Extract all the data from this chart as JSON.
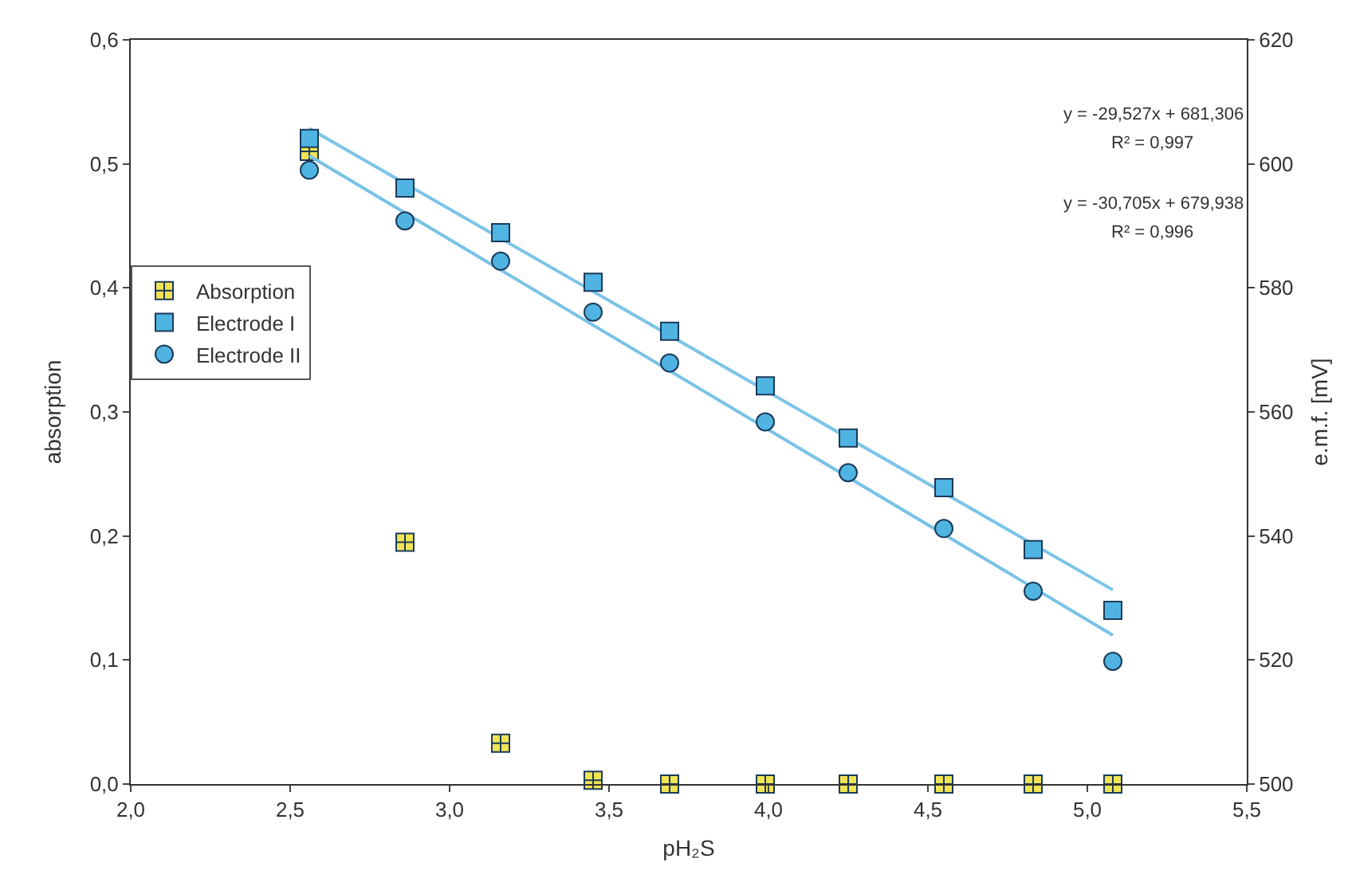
{
  "chart_data": {
    "type": "scatter",
    "xlabel": "pH₂S",
    "ylabel": "absorption",
    "y2label": "e.m.f. [mV]",
    "x": [
      2.56,
      2.86,
      3.16,
      3.45,
      3.69,
      3.99,
      4.25,
      4.55,
      4.83,
      5.08
    ],
    "series": [
      {
        "type": "line",
        "color": "#7cc4e8",
        "marker": "none",
        "line_style": "solid",
        "axis": "y2",
        "values": [
          605.7,
          null,
          null,
          null,
          null,
          null,
          null,
          null,
          null,
          531.3
        ]
      },
      {
        "type": "line",
        "color": "#79c2e6",
        "marker": "none",
        "line_style": "solid",
        "axis": "y2",
        "values": [
          601.3,
          null,
          null,
          null,
          null,
          null,
          null,
          null,
          null,
          524.0
        ]
      },
      {
        "name": "Absorption",
        "color": "#f0e455",
        "marker": "cross",
        "values": [
          0.51,
          0.195,
          0.033,
          0.003,
          0,
          0,
          0,
          0,
          0,
          0
        ]
      },
      {
        "name": "Electrode I",
        "color": "#4fb4e2",
        "marker": "square",
        "axis": "y2",
        "values": [
          604.1,
          596.1,
          588.9,
          580.9,
          573.0,
          564.2,
          555.8,
          547.8,
          537.8,
          528.0
        ]
      },
      {
        "name": "Electrode II",
        "color": "#4fb4e2",
        "marker": "circle",
        "axis": "y2",
        "values": [
          599.0,
          590.8,
          584.3,
          576.1,
          567.9,
          558.4,
          550.2,
          541.2,
          531.1,
          519.8
        ]
      }
    ],
    "xlim": [
      2,
      5.5
    ],
    "ylim": [
      0,
      0.6
    ],
    "y2lim": [
      500,
      620
    ],
    "xticks": [
      {
        "value": 2,
        "label": "2,0"
      },
      {
        "value": 2.5,
        "label": "2,5"
      },
      {
        "value": 3,
        "label": "3,0"
      },
      {
        "value": 3.5,
        "label": "3,5"
      },
      {
        "value": 4,
        "label": "4,0"
      },
      {
        "value": 4.5,
        "label": "4,5"
      },
      {
        "value": 5,
        "label": "5,0"
      },
      {
        "value": 5.5,
        "label": "5,5"
      }
    ],
    "yticks": [
      {
        "value": 0,
        "label": "0,0"
      },
      {
        "value": 0.1,
        "label": "0,1"
      },
      {
        "value": 0.2,
        "label": "0,2"
      },
      {
        "value": 0.3,
        "label": "0,3"
      },
      {
        "value": 0.4,
        "label": "0,4"
      },
      {
        "value": 0.5,
        "label": "0,5"
      },
      {
        "value": 0.6,
        "label": "0,6"
      }
    ],
    "y2ticks": [
      500,
      520,
      540,
      560,
      580,
      600,
      620
    ],
    "annotations": [
      "y = -29,527x + 681,306",
      "R² = 0,997",
      "y = -30,705x + 679,938",
      "R² = 0,996"
    ],
    "grid": false,
    "legend": "left"
  }
}
